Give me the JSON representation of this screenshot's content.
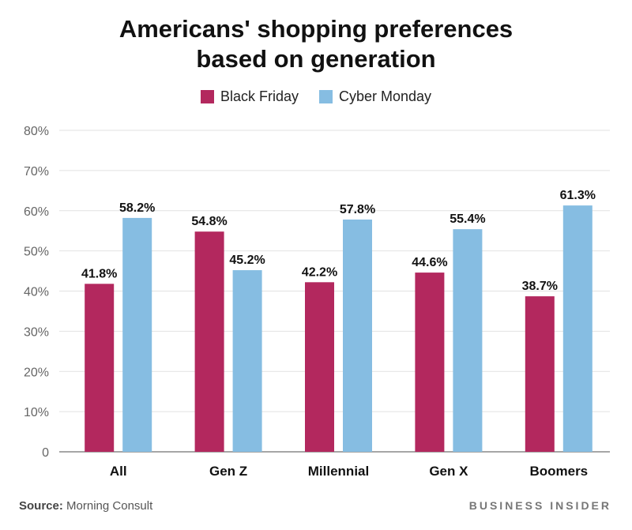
{
  "chart_data": {
    "type": "bar",
    "title_lines": [
      "Americans' shopping preferences",
      "based on generation"
    ],
    "categories": [
      "All",
      "Gen Z",
      "Millennial",
      "Gen X",
      "Boomers"
    ],
    "series": [
      {
        "name": "Black Friday",
        "color": "#b3285e",
        "values": [
          41.8,
          54.8,
          42.2,
          44.6,
          38.7
        ],
        "labels": [
          "41.8%",
          "54.8%",
          "42.2%",
          "44.6%",
          "38.7%"
        ]
      },
      {
        "name": "Cyber Monday",
        "color": "#86bde2",
        "values": [
          58.2,
          45.2,
          57.8,
          55.4,
          61.3
        ],
        "labels": [
          "58.2%",
          "45.2%",
          "57.8%",
          "55.4%",
          "61.3%"
        ]
      }
    ],
    "ylim": [
      0,
      80
    ],
    "yticks": [
      0,
      10,
      20,
      30,
      40,
      50,
      60,
      70,
      80
    ],
    "ytick_labels": [
      "0",
      "10%",
      "20%",
      "30%",
      "40%",
      "50%",
      "60%",
      "70%",
      "80%"
    ],
    "grid": true,
    "legend_position": "top-center"
  },
  "footer": {
    "source_label": "Source:",
    "source_text": "Morning Consult",
    "brand": "BUSINESS INSIDER"
  }
}
